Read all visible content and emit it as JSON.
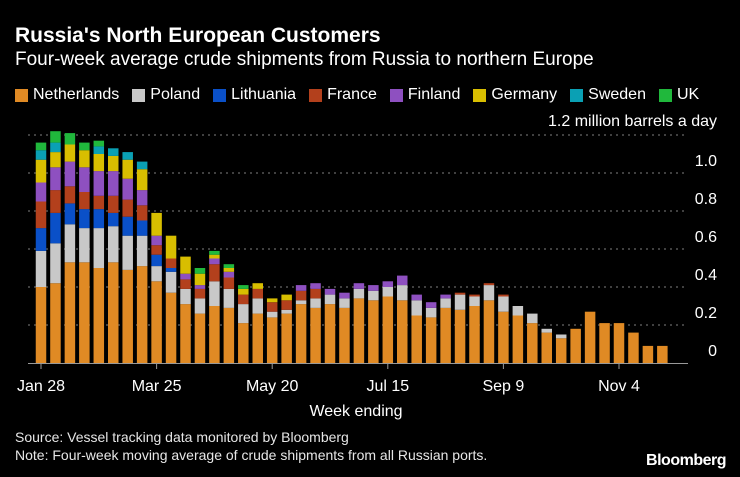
{
  "title": "Russia's North European Customers",
  "subtitle": "Four-week average crude shipments from Russia to northern Europe",
  "source": "Source: Vessel tracking data monitored by Bloomberg",
  "note": "Note: Four-week moving average of crude shipments from all Russian ports.",
  "logo": "Bloomberg",
  "chart_data": {
    "type": "bar",
    "stacked": true,
    "title": "Russia's North European Customers",
    "xlabel": "Week ending",
    "ylabel": "",
    "unit_label": "1.2 million barrels a day",
    "ylim": [
      0,
      1.2
    ],
    "y_ticks": [
      "0",
      "0.2",
      "0.4",
      "0.6",
      "0.8",
      "1.0"
    ],
    "grid": true,
    "legend_position": "top",
    "x_tick_labels": [
      "Jan 28",
      "Mar 25",
      "May 20",
      "Jul 15",
      "Sep 9",
      "Nov 4"
    ],
    "categories": [
      "Jan 28",
      "Feb 4",
      "Feb 11",
      "Feb 18",
      "Feb 25",
      "Mar 4",
      "Mar 11",
      "Mar 18",
      "Mar 25",
      "Apr 1",
      "Apr 8",
      "Apr 15",
      "Apr 22",
      "Apr 29",
      "May 6",
      "May 13",
      "May 20",
      "May 27",
      "Jun 3",
      "Jun 10",
      "Jun 17",
      "Jun 24",
      "Jul 1",
      "Jul 8",
      "Jul 15",
      "Jul 22",
      "Jul 29",
      "Aug 5",
      "Aug 12",
      "Aug 19",
      "Aug 26",
      "Sep 2",
      "Sep 9",
      "Sep 16",
      "Sep 23",
      "Sep 30",
      "Oct 7",
      "Oct 14",
      "Oct 21",
      "Oct 28",
      "Nov 4",
      "Nov 11",
      "Nov 18",
      "Nov 25"
    ],
    "series": [
      {
        "name": "Netherlands",
        "color": "#e08a24",
        "values": [
          0.4,
          0.42,
          0.53,
          0.53,
          0.5,
          0.53,
          0.49,
          0.51,
          0.43,
          0.37,
          0.31,
          0.26,
          0.3,
          0.29,
          0.21,
          0.26,
          0.24,
          0.26,
          0.31,
          0.29,
          0.31,
          0.29,
          0.34,
          0.33,
          0.35,
          0.33,
          0.25,
          0.24,
          0.29,
          0.28,
          0.3,
          0.33,
          0.27,
          0.25,
          0.21,
          0.16,
          0.13,
          0.18,
          0.27,
          0.21,
          0.21,
          0.16,
          0.09,
          0.09
        ]
      },
      {
        "name": "Poland",
        "color": "#c8c8c8",
        "values": [
          0.19,
          0.21,
          0.2,
          0.18,
          0.21,
          0.19,
          0.18,
          0.16,
          0.08,
          0.11,
          0.08,
          0.08,
          0.13,
          0.1,
          0.1,
          0.08,
          0.03,
          0.02,
          0.02,
          0.05,
          0.05,
          0.05,
          0.05,
          0.05,
          0.05,
          0.08,
          0.08,
          0.05,
          0.05,
          0.08,
          0.05,
          0.08,
          0.08,
          0.05,
          0.05,
          0.02,
          0.02,
          0,
          0,
          0,
          0,
          0,
          0,
          0
        ]
      },
      {
        "name": "Lithuania",
        "color": "#0a50c8",
        "values": [
          0.12,
          0.16,
          0.11,
          0.1,
          0.1,
          0.07,
          0.1,
          0.08,
          0.06,
          0.02,
          0,
          0,
          0,
          0,
          0,
          0,
          0,
          0,
          0,
          0,
          0,
          0,
          0,
          0,
          0,
          0,
          0,
          0,
          0,
          0,
          0,
          0,
          0,
          0,
          0,
          0,
          0,
          0,
          0,
          0,
          0,
          0,
          0,
          0
        ]
      },
      {
        "name": "France",
        "color": "#b3401c",
        "values": [
          0.14,
          0.12,
          0.09,
          0.09,
          0.07,
          0.09,
          0.09,
          0.08,
          0.05,
          0.05,
          0.05,
          0.05,
          0.09,
          0.06,
          0.05,
          0.05,
          0.05,
          0.05,
          0.05,
          0.05,
          0,
          0,
          0,
          0,
          0,
          0,
          0,
          0,
          0,
          0.01,
          0.01,
          0.01,
          0.01,
          0,
          0,
          0,
          0,
          0,
          0,
          0,
          0,
          0,
          0,
          0
        ]
      },
      {
        "name": "Finland",
        "color": "#8e50c0",
        "values": [
          0.1,
          0.12,
          0.13,
          0.13,
          0.13,
          0.13,
          0.11,
          0.08,
          0.05,
          0,
          0.03,
          0.02,
          0.03,
          0.03,
          0,
          0,
          0,
          0,
          0.03,
          0.03,
          0.03,
          0.03,
          0.03,
          0.03,
          0.03,
          0.05,
          0.03,
          0.03,
          0.02,
          0,
          0,
          0,
          0,
          0,
          0,
          0,
          0,
          0,
          0,
          0,
          0,
          0,
          0,
          0
        ]
      },
      {
        "name": "Germany",
        "color": "#d8be00",
        "values": [
          0.12,
          0.08,
          0.09,
          0.09,
          0.09,
          0.08,
          0.1,
          0.11,
          0.12,
          0.12,
          0.09,
          0.06,
          0.02,
          0.02,
          0.03,
          0.03,
          0.02,
          0.03,
          0,
          0,
          0,
          0,
          0,
          0,
          0,
          0,
          0,
          0,
          0,
          0,
          0,
          0,
          0,
          0,
          0,
          0,
          0,
          0,
          0,
          0,
          0,
          0,
          0,
          0
        ]
      },
      {
        "name": "Sweden",
        "color": "#0aa0b4",
        "values": [
          0.05,
          0.05,
          0,
          0,
          0.04,
          0.04,
          0.04,
          0.04,
          0,
          0,
          0,
          0,
          0,
          0,
          0,
          0,
          0,
          0,
          0,
          0,
          0,
          0,
          0,
          0,
          0,
          0,
          0,
          0,
          0,
          0,
          0,
          0,
          0,
          0,
          0,
          0,
          0,
          0,
          0,
          0,
          0,
          0,
          0,
          0
        ]
      },
      {
        "name": "UK",
        "color": "#20b83c",
        "values": [
          0.04,
          0.06,
          0.06,
          0.04,
          0.03,
          0,
          0,
          0,
          0,
          0,
          0,
          0.03,
          0.02,
          0.02,
          0.02,
          0,
          0,
          0,
          0,
          0,
          0,
          0,
          0,
          0,
          0,
          0,
          0,
          0,
          0,
          0,
          0,
          0,
          0,
          0,
          0,
          0,
          0,
          0,
          0,
          0,
          0,
          0,
          0,
          0
        ]
      }
    ]
  }
}
